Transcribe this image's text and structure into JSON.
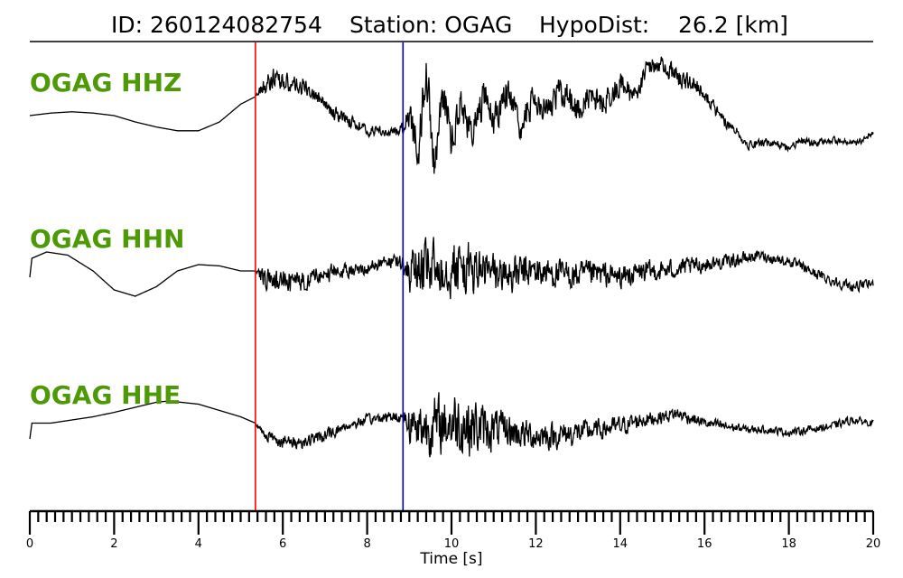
{
  "header": {
    "id_text": "ID: 260124082754",
    "station_text": "Station: OGAG",
    "hypodist_text": "HypoDist:    26.2 [km]"
  },
  "chart_data": {
    "type": "line",
    "xlabel": "Time [s]",
    "xlim": [
      0,
      20
    ],
    "x_ticks": [
      "0",
      "2",
      "4",
      "6",
      "8",
      "10",
      "12",
      "14",
      "16",
      "18",
      "20"
    ],
    "minor_tick_step": 0.2,
    "grid": false,
    "colors": {
      "trace": "#000000",
      "p_pick": "#ff0000",
      "s_pick": "#0000cc",
      "label": "#4e9a06"
    },
    "picks": [
      {
        "phase": "P",
        "time": 5.35,
        "color": "#ff0000"
      },
      {
        "phase": "S",
        "time": 8.85,
        "color": "#0000cc"
      }
    ],
    "series": [
      {
        "name": "OGAG HHZ",
        "x": [
          0,
          0.5,
          1,
          1.5,
          2,
          2.5,
          3,
          3.5,
          4,
          4.5,
          5,
          5.35,
          5.5,
          5.8,
          6,
          6.2,
          6.5,
          6.8,
          7,
          7.2,
          7.5,
          7.8,
          8,
          8.3,
          8.5,
          8.85,
          9,
          9.2,
          9.4,
          9.6,
          9.8,
          10,
          10.2,
          10.5,
          10.8,
          11,
          11.3,
          11.6,
          12,
          12.3,
          12.6,
          13,
          13.3,
          13.6,
          14,
          14.3,
          14.6,
          14.9,
          15.2,
          15.5,
          15.8,
          16.1,
          16.4,
          16.7,
          17,
          17.3,
          17.6,
          18,
          18.3,
          18.6,
          19,
          19.3,
          19.6,
          20
        ],
        "y": [
          0.0,
          0.04,
          0.06,
          0.04,
          0.0,
          -0.1,
          -0.18,
          -0.24,
          -0.24,
          -0.1,
          0.18,
          0.3,
          0.45,
          0.6,
          0.55,
          0.5,
          0.45,
          0.3,
          0.15,
          0.05,
          -0.05,
          -0.15,
          -0.25,
          -0.22,
          -0.3,
          -0.2,
          0.1,
          -0.6,
          0.75,
          -0.8,
          0.4,
          -0.4,
          0.2,
          -0.3,
          0.35,
          -0.1,
          0.4,
          -0.2,
          0.3,
          0.1,
          0.4,
          0.1,
          0.3,
          0.2,
          0.5,
          0.3,
          0.7,
          0.85,
          0.7,
          0.55,
          0.5,
          0.25,
          -0.05,
          -0.2,
          -0.45,
          -0.45,
          -0.42,
          -0.5,
          -0.4,
          -0.45,
          -0.38,
          -0.42,
          -0.45,
          -0.25
        ],
        "noise": [
          0,
          0,
          0,
          0,
          0,
          0,
          0,
          0,
          0,
          0,
          0,
          0,
          0.15,
          0.15,
          0.15,
          0.12,
          0.12,
          0.1,
          0.1,
          0.1,
          0.1,
          0.08,
          0.08,
          0.08,
          0.06,
          0.1,
          0.3,
          0.35,
          0.35,
          0.35,
          0.3,
          0.3,
          0.25,
          0.25,
          0.25,
          0.25,
          0.25,
          0.25,
          0.22,
          0.22,
          0.22,
          0.22,
          0.2,
          0.2,
          0.2,
          0.2,
          0.15,
          0.15,
          0.15,
          0.15,
          0.12,
          0.1,
          0.1,
          0.08,
          0.08,
          0.08,
          0.06,
          0.06,
          0.06,
          0.06,
          0.05,
          0.05,
          0.05,
          0.05
        ]
      },
      {
        "name": "OGAG HHN",
        "x": [
          0,
          0.05,
          0.4,
          0.9,
          1.5,
          2,
          2.5,
          3,
          3.5,
          4,
          4.5,
          5,
          5.35,
          5.5,
          6,
          6.5,
          7,
          7.5,
          8,
          8.5,
          8.85,
          9,
          9.3,
          9.6,
          9.9,
          10.2,
          10.5,
          10.8,
          11.1,
          11.5,
          12,
          12.5,
          13,
          13.5,
          14,
          14.5,
          15,
          15.5,
          16,
          16.5,
          17,
          17.3,
          17.6,
          18,
          18.5,
          19,
          19.5,
          20
        ],
        "y": [
          -0.1,
          0.2,
          0.3,
          0.25,
          0.0,
          -0.3,
          -0.4,
          -0.25,
          0.0,
          0.1,
          0.08,
          0.0,
          0.0,
          -0.1,
          -0.2,
          -0.15,
          -0.05,
          0.0,
          0.05,
          0.15,
          0.1,
          0.0,
          0.0,
          0.05,
          0.1,
          0.05,
          0.0,
          0.0,
          -0.05,
          -0.05,
          0.0,
          -0.05,
          -0.08,
          -0.05,
          -0.1,
          -0.02,
          0.0,
          0.05,
          0.1,
          0.15,
          0.2,
          0.25,
          0.2,
          0.15,
          0.0,
          -0.15,
          -0.25,
          -0.2
        ],
        "noise": [
          0,
          0,
          0,
          0,
          0,
          0,
          0,
          0,
          0,
          0,
          0,
          0,
          0,
          0.15,
          0.2,
          0.15,
          0.15,
          0.1,
          0.1,
          0.1,
          0.12,
          0.35,
          0.4,
          0.45,
          0.45,
          0.45,
          0.4,
          0.35,
          0.3,
          0.28,
          0.25,
          0.22,
          0.22,
          0.2,
          0.18,
          0.18,
          0.15,
          0.15,
          0.12,
          0.1,
          0.1,
          0.08,
          0.08,
          0.08,
          0.08,
          0.08,
          0.08,
          0.06
        ]
      },
      {
        "name": "OGAG HHE",
        "x": [
          0,
          0.05,
          0.5,
          1,
          1.5,
          2,
          2.5,
          3,
          3.3,
          4,
          4.5,
          5,
          5.35,
          5.5,
          6,
          6.5,
          7,
          7.5,
          8,
          8.5,
          8.85,
          9,
          9.3,
          9.6,
          9.9,
          10.2,
          10.5,
          10.8,
          11.1,
          11.5,
          12,
          12.5,
          13,
          13.5,
          14,
          14.5,
          15,
          15.3,
          15.6,
          16,
          16.5,
          17,
          17.5,
          18,
          18.5,
          19,
          19.5,
          20
        ],
        "y": [
          -0.2,
          0.05,
          0.05,
          0.1,
          0.15,
          0.22,
          0.3,
          0.38,
          0.4,
          0.35,
          0.25,
          0.15,
          0.05,
          -0.1,
          -0.25,
          -0.25,
          -0.15,
          0.0,
          0.1,
          0.15,
          0.15,
          0.05,
          0.0,
          0.0,
          0.05,
          0.05,
          0.0,
          -0.05,
          -0.05,
          -0.1,
          -0.15,
          -0.15,
          -0.1,
          -0.05,
          0.0,
          0.1,
          0.15,
          0.2,
          0.15,
          0.05,
          0.0,
          -0.05,
          -0.05,
          -0.1,
          -0.05,
          0.0,
          0.1,
          0.05
        ],
        "noise": [
          0,
          0,
          0,
          0,
          0,
          0,
          0,
          0,
          0,
          0,
          0,
          0,
          0,
          0.08,
          0.1,
          0.1,
          0.1,
          0.08,
          0.08,
          0.08,
          0.1,
          0.3,
          0.4,
          0.45,
          0.45,
          0.5,
          0.45,
          0.35,
          0.3,
          0.25,
          0.22,
          0.2,
          0.18,
          0.15,
          0.15,
          0.12,
          0.1,
          0.1,
          0.1,
          0.08,
          0.08,
          0.06,
          0.06,
          0.06,
          0.06,
          0.06,
          0.06,
          0.05
        ]
      }
    ]
  }
}
